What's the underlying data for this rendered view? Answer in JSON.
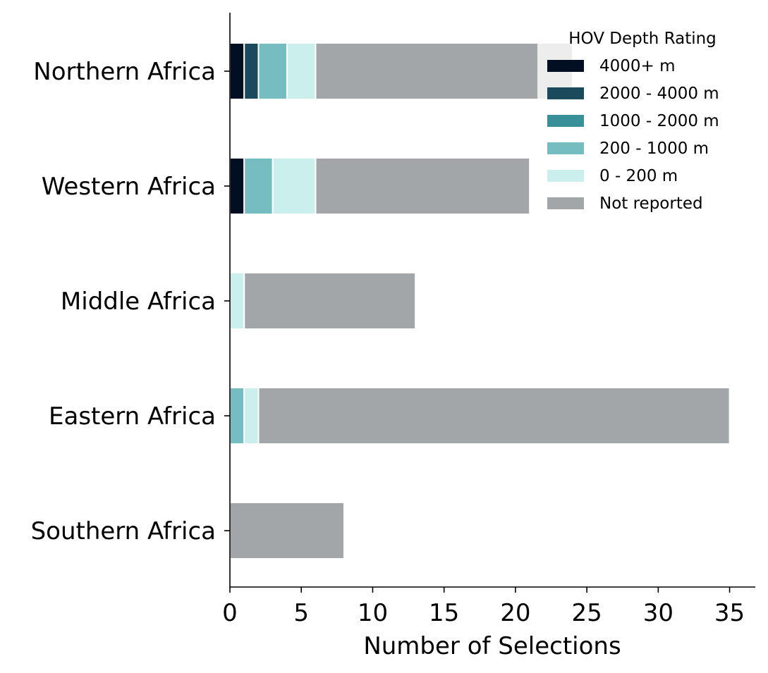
{
  "chart_data": {
    "type": "bar",
    "orientation": "horizontal",
    "stacked": true,
    "xlabel": "Number of Selections",
    "ylabel": "",
    "xlim": [
      0,
      36.8
    ],
    "xticks": [
      0,
      5,
      10,
      15,
      20,
      25,
      30,
      35
    ],
    "grid": false,
    "legend": {
      "title": "HOV Depth Rating",
      "placement": "top-right"
    },
    "categories": [
      "Northern Africa",
      "Western Africa",
      "Middle Africa",
      "Eastern Africa",
      "Southern Africa"
    ],
    "series": [
      {
        "name": "4000+ m",
        "color": "#020f22",
        "values": [
          1,
          1,
          0,
          0,
          0
        ]
      },
      {
        "name": "2000 - 4000 m",
        "color": "#1a4a5c",
        "values": [
          1,
          0,
          0,
          0,
          0
        ]
      },
      {
        "name": "1000 - 2000 m",
        "color": "#3a9099",
        "values": [
          0,
          0,
          0,
          0,
          0
        ]
      },
      {
        "name": "200 - 1000 m",
        "color": "#75bdc1",
        "values": [
          2,
          2,
          0,
          1,
          0
        ]
      },
      {
        "name": "0 - 200 m",
        "color": "#cbefec",
        "values": [
          2,
          3,
          1,
          1,
          0
        ]
      },
      {
        "name": "Not reported",
        "color": "#a3a6a8",
        "values": [
          18,
          15,
          12,
          33,
          8
        ]
      }
    ]
  }
}
